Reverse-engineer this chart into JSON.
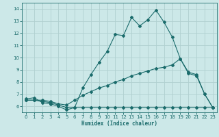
{
  "xlabel": "Humidex (Indice chaleur)",
  "bg_color": "#cce8e8",
  "grid_color": "#b0d0d0",
  "line_color": "#1a6b6b",
  "xlim": [
    -0.5,
    23.5
  ],
  "ylim": [
    5.5,
    14.5
  ],
  "xticks": [
    0,
    1,
    2,
    3,
    4,
    5,
    6,
    7,
    8,
    9,
    10,
    11,
    12,
    13,
    14,
    15,
    16,
    17,
    18,
    19,
    20,
    21,
    22,
    23
  ],
  "yticks": [
    6,
    7,
    8,
    9,
    10,
    11,
    12,
    13,
    14
  ],
  "line1_x": [
    0,
    1,
    2,
    3,
    4,
    5,
    6,
    7,
    8,
    9,
    10,
    11,
    12,
    13,
    14,
    15,
    16,
    17,
    18,
    19,
    20,
    21,
    22,
    23
  ],
  "line1_y": [
    6.6,
    6.7,
    6.3,
    6.2,
    6.0,
    5.7,
    5.9,
    7.5,
    8.6,
    9.6,
    10.5,
    11.9,
    11.8,
    13.3,
    12.6,
    13.1,
    13.9,
    12.9,
    11.7,
    9.9,
    8.7,
    8.5,
    7.0,
    5.9
  ],
  "line2_x": [
    0,
    1,
    2,
    3,
    4,
    5,
    6,
    7,
    8,
    9,
    10,
    11,
    12,
    13,
    14,
    15,
    16,
    17,
    18,
    19,
    20,
    21,
    22,
    23
  ],
  "line2_y": [
    6.5,
    6.5,
    6.5,
    6.4,
    6.2,
    6.1,
    6.5,
    6.9,
    7.2,
    7.5,
    7.7,
    8.0,
    8.2,
    8.5,
    8.7,
    8.9,
    9.1,
    9.2,
    9.4,
    9.9,
    8.8,
    8.6,
    7.0,
    5.9
  ],
  "line3_x": [
    0,
    1,
    2,
    3,
    4,
    5,
    6,
    7,
    8,
    9,
    10,
    11,
    12,
    13,
    14,
    15,
    16,
    17,
    18,
    19,
    20,
    21,
    22,
    23
  ],
  "line3_y": [
    6.5,
    6.5,
    6.4,
    6.3,
    6.1,
    5.9,
    5.9,
    5.9,
    5.9,
    5.9,
    5.9,
    5.9,
    5.9,
    5.9,
    5.9,
    5.9,
    5.9,
    5.9,
    5.9,
    5.9,
    5.9,
    5.9,
    5.9,
    5.9
  ]
}
